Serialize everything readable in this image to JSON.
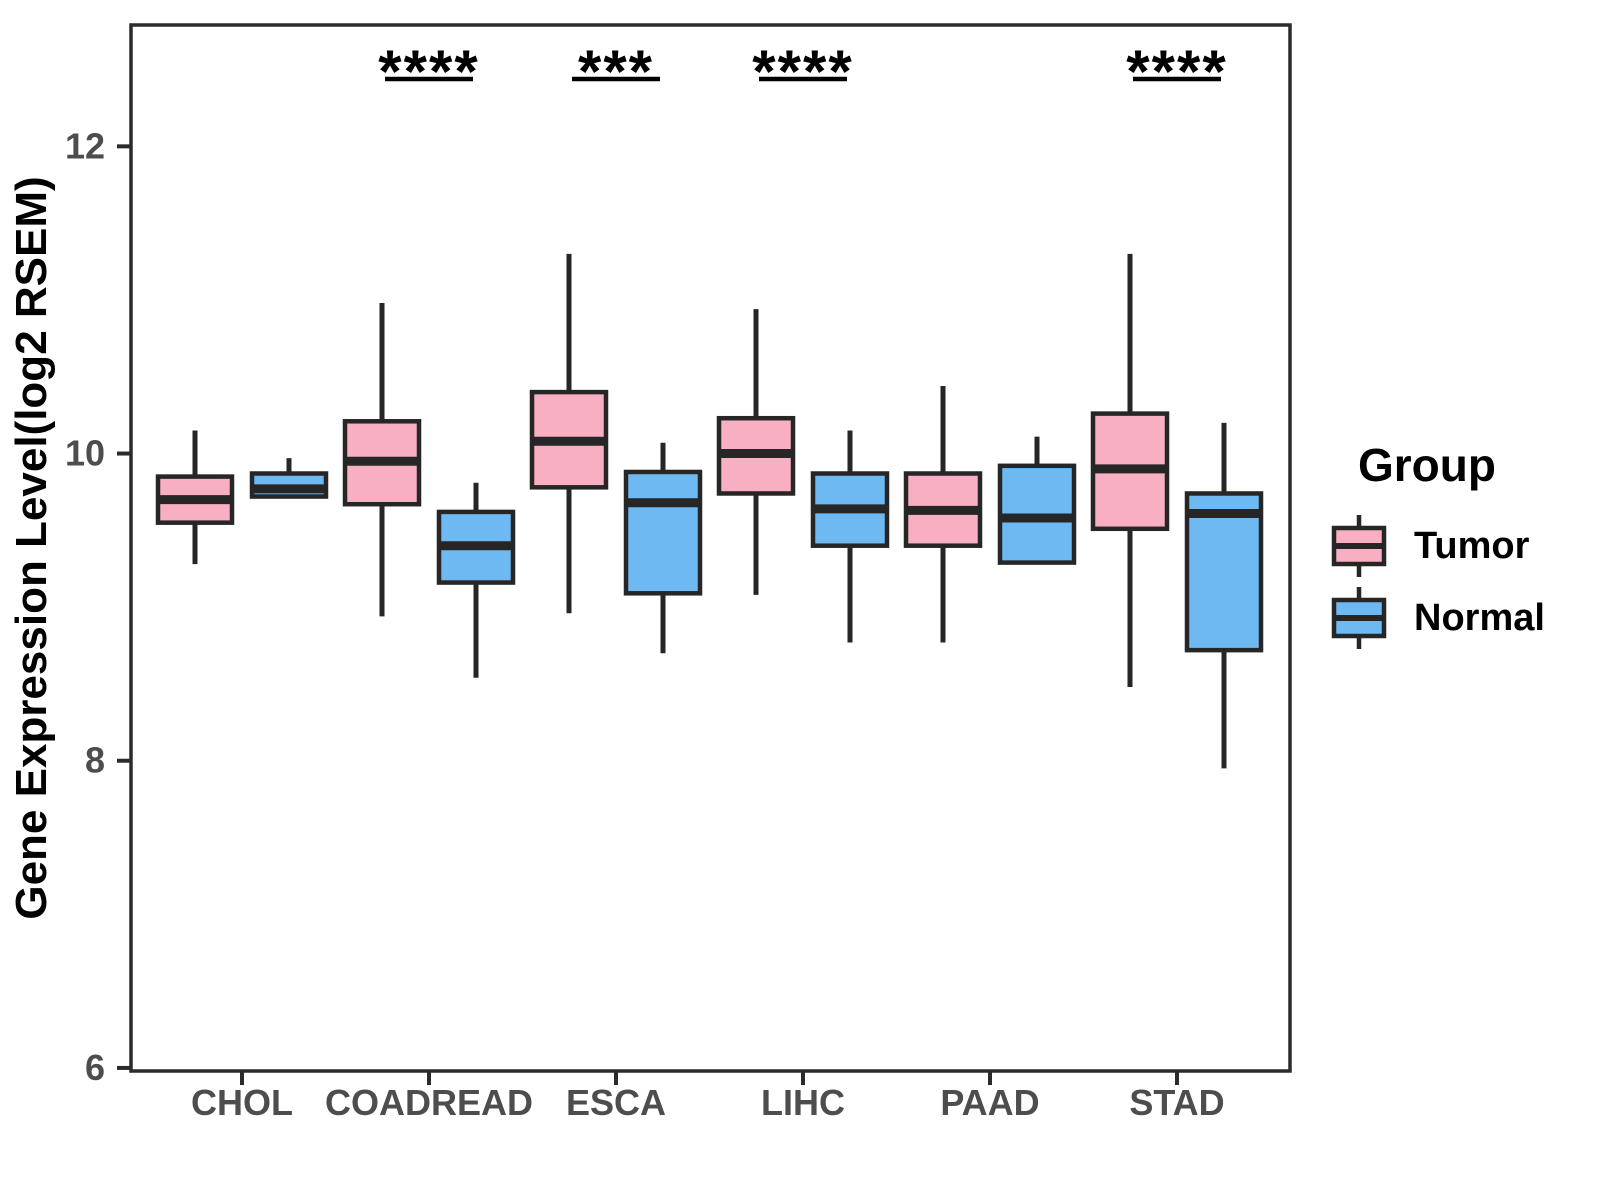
{
  "chart_data": {
    "type": "boxplot",
    "title": "",
    "xlabel": "",
    "ylabel": "Gene Expression Level(log2 RSEM)",
    "categories": [
      "CHOL",
      "COADREAD",
      "ESCA",
      "LIHC",
      "PAAD",
      "STAD"
    ],
    "y_ticks": [
      6,
      8,
      10,
      12
    ],
    "ylim": [
      5.98,
      12.79
    ],
    "grid": false,
    "legend": {
      "title": "Group",
      "position": "right",
      "entries": [
        {
          "label": "Tumor",
          "color": "#F9AFC2"
        },
        {
          "label": "Normal",
          "color": "#6FB9F2"
        }
      ]
    },
    "colors": {
      "outline": "#262626",
      "panel_border": "#2B2B2B",
      "tick_text": "#4D4D4D",
      "axis_title_text": "#000000"
    },
    "series": [
      {
        "category": "CHOL",
        "group": "Tumor",
        "min": 9.28,
        "q1": 9.55,
        "median": 9.7,
        "q3": 9.85,
        "max": 10.15
      },
      {
        "category": "CHOL",
        "group": "Normal",
        "min": 9.72,
        "q1": 9.72,
        "median": 9.77,
        "q3": 9.87,
        "max": 9.97
      },
      {
        "category": "COADREAD",
        "group": "Tumor",
        "min": 8.94,
        "q1": 9.67,
        "median": 9.95,
        "q3": 10.21,
        "max": 10.98
      },
      {
        "category": "COADREAD",
        "group": "Normal",
        "min": 8.54,
        "q1": 9.16,
        "median": 9.4,
        "q3": 9.62,
        "max": 9.81
      },
      {
        "category": "ESCA",
        "group": "Tumor",
        "min": 8.96,
        "q1": 9.78,
        "median": 10.08,
        "q3": 10.4,
        "max": 11.3
      },
      {
        "category": "ESCA",
        "group": "Normal",
        "min": 8.7,
        "q1": 9.09,
        "median": 9.68,
        "q3": 9.88,
        "max": 10.07
      },
      {
        "category": "LIHC",
        "group": "Tumor",
        "min": 9.08,
        "q1": 9.74,
        "median": 10.0,
        "q3": 10.23,
        "max": 10.94
      },
      {
        "category": "LIHC",
        "group": "Normal",
        "min": 8.77,
        "q1": 9.4,
        "median": 9.64,
        "q3": 9.87,
        "max": 10.15
      },
      {
        "category": "PAAD",
        "group": "Tumor",
        "min": 8.77,
        "q1": 9.4,
        "median": 9.63,
        "q3": 9.87,
        "max": 10.44
      },
      {
        "category": "PAAD",
        "group": "Normal",
        "min": 9.29,
        "q1": 9.29,
        "median": 9.58,
        "q3": 9.92,
        "max": 10.11
      },
      {
        "category": "STAD",
        "group": "Tumor",
        "min": 8.48,
        "q1": 9.51,
        "median": 9.9,
        "q3": 10.26,
        "max": 11.3
      },
      {
        "category": "STAD",
        "group": "Normal",
        "min": 7.95,
        "q1": 8.72,
        "median": 9.61,
        "q3": 9.74,
        "max": 10.2
      }
    ],
    "significance": [
      {
        "category": "COADREAD",
        "label": "****"
      },
      {
        "category": "ESCA",
        "label": "***"
      },
      {
        "category": "LIHC",
        "label": "****"
      },
      {
        "category": "STAD",
        "label": "****"
      }
    ]
  }
}
